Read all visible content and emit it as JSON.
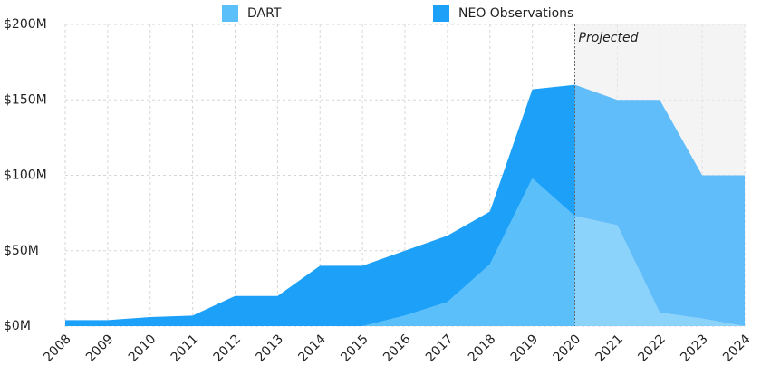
{
  "chart_data": {
    "type": "stacked_area",
    "x": [
      2008,
      2009,
      2010,
      2011,
      2012,
      2013,
      2014,
      2015,
      2016,
      2017,
      2018,
      2019,
      2020,
      2021,
      2022,
      2023,
      2024
    ],
    "series": [
      {
        "name": "DART",
        "color": "#5bc0fa",
        "values": [
          0,
          0,
          0,
          0,
          0,
          0,
          0,
          0,
          7,
          16,
          41,
          98,
          73,
          67,
          9,
          5,
          0
        ]
      },
      {
        "name": "NEO Observations",
        "color": "#1da1f8",
        "values": [
          4,
          4,
          6,
          7,
          20,
          20,
          40,
          40,
          43,
          44,
          35,
          59,
          87,
          83,
          141,
          95,
          100
        ]
      }
    ],
    "xlim": [
      2008,
      2024
    ],
    "xticks": [
      2008,
      2009,
      2010,
      2011,
      2012,
      2013,
      2014,
      2015,
      2016,
      2017,
      2018,
      2019,
      2020,
      2021,
      2022,
      2023,
      2024
    ],
    "ylim": [
      0,
      200
    ],
    "yticks": [
      {
        "value": 0,
        "label": "$0M"
      },
      {
        "value": 50,
        "label": "$50M"
      },
      {
        "value": 100,
        "label": "$100M"
      },
      {
        "value": 150,
        "label": "$150M"
      },
      {
        "value": 200,
        "label": "$200M"
      }
    ],
    "grid": true,
    "projection": {
      "start": 2020,
      "label": "Projected"
    }
  }
}
